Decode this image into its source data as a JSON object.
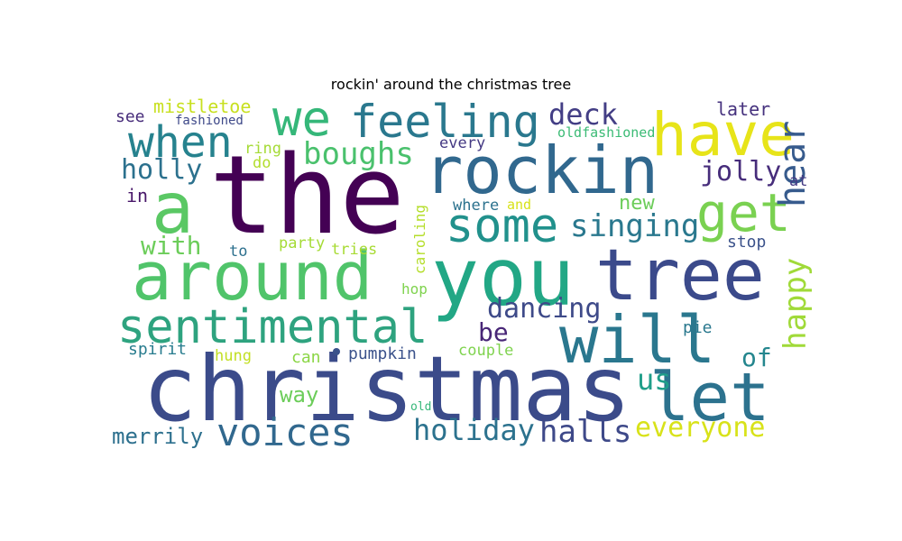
{
  "chart_data": {
    "type": "wordcloud",
    "title": "rockin' around the christmas tree",
    "words": [
      {
        "text": "the",
        "color": "#440154"
      },
      {
        "text": "christmas",
        "color": "#3b4b8a"
      },
      {
        "text": "rockin",
        "color": "#31688e"
      },
      {
        "text": "you",
        "color": "#22a785"
      },
      {
        "text": "tree",
        "color": "#3b4a8b"
      },
      {
        "text": "around",
        "color": "#50c46a"
      },
      {
        "text": "a",
        "color": "#5ac864"
      },
      {
        "text": "will",
        "color": "#2a778e"
      },
      {
        "text": "let",
        "color": "#2c728e"
      },
      {
        "text": "sentimental",
        "color": "#2ea37f"
      },
      {
        "text": "feeling",
        "color": "#2a788e"
      },
      {
        "text": "have",
        "color": "#e7e419"
      },
      {
        "text": "some",
        "color": "#21918c"
      },
      {
        "text": "we",
        "color": "#35b779"
      },
      {
        "text": "when",
        "color": "#26828e"
      },
      {
        "text": "get",
        "color": "#7ad151"
      },
      {
        "text": "hear",
        "color": "#375b8d"
      },
      {
        "text": "voices",
        "color": "#31688e"
      },
      {
        "text": "happy",
        "color": "#a0da39"
      },
      {
        "text": "singing",
        "color": "#2a788e"
      },
      {
        "text": "boughs",
        "color": "#4ac16d"
      },
      {
        "text": "holiday",
        "color": "#2c728e"
      },
      {
        "text": "halls",
        "color": "#3e4989"
      },
      {
        "text": "everyone",
        "color": "#d8e219"
      },
      {
        "text": "jolly",
        "color": "#472d7b"
      },
      {
        "text": "holly",
        "color": "#2c718e"
      },
      {
        "text": "deck",
        "color": "#433e85"
      },
      {
        "text": "dancing",
        "color": "#3e4a89"
      },
      {
        "text": "with",
        "color": "#6ccd5a"
      },
      {
        "text": "us",
        "color": "#1f9e89"
      },
      {
        "text": "be",
        "color": "#482677"
      },
      {
        "text": "of",
        "color": "#24868e"
      },
      {
        "text": "way",
        "color": "#6ccd5a"
      },
      {
        "text": "merrily",
        "color": "#2d708e"
      },
      {
        "text": "new",
        "color": "#6ccd5a"
      },
      {
        "text": "stop",
        "color": "#3b528b"
      },
      {
        "text": "mistletoe",
        "color": "#c8e020"
      },
      {
        "text": "later",
        "color": "#46327e"
      },
      {
        "text": "see",
        "color": "#472c7a"
      },
      {
        "text": "fashioned",
        "color": "#3e4989"
      },
      {
        "text": "oldfashioned",
        "color": "#3bbb75"
      },
      {
        "text": "every",
        "color": "#443983"
      },
      {
        "text": "ring",
        "color": "#a5db36"
      },
      {
        "text": "do",
        "color": "#b2dd2d"
      },
      {
        "text": "in",
        "color": "#481769"
      },
      {
        "text": "at",
        "color": "#443b84"
      },
      {
        "text": "where",
        "color": "#2c728e"
      },
      {
        "text": "and",
        "color": "#d8e219"
      },
      {
        "text": "caroling",
        "color": "#b5de2b"
      },
      {
        "text": "to",
        "color": "#2d708e"
      },
      {
        "text": "party",
        "color": "#a5db36"
      },
      {
        "text": "tries",
        "color": "#a8db34"
      },
      {
        "text": "hop",
        "color": "#7fd34e"
      },
      {
        "text": "spirit",
        "color": "#287c8e"
      },
      {
        "text": "hung",
        "color": "#c2df23"
      },
      {
        "text": "can",
        "color": "#8bd646"
      },
      {
        "text": "pumpkin",
        "color": "#3b528b"
      },
      {
        "text": "couple",
        "color": "#7fd34e"
      },
      {
        "text": "pie",
        "color": "#2a788e"
      },
      {
        "text": "old",
        "color": "#35b779"
      }
    ]
  }
}
